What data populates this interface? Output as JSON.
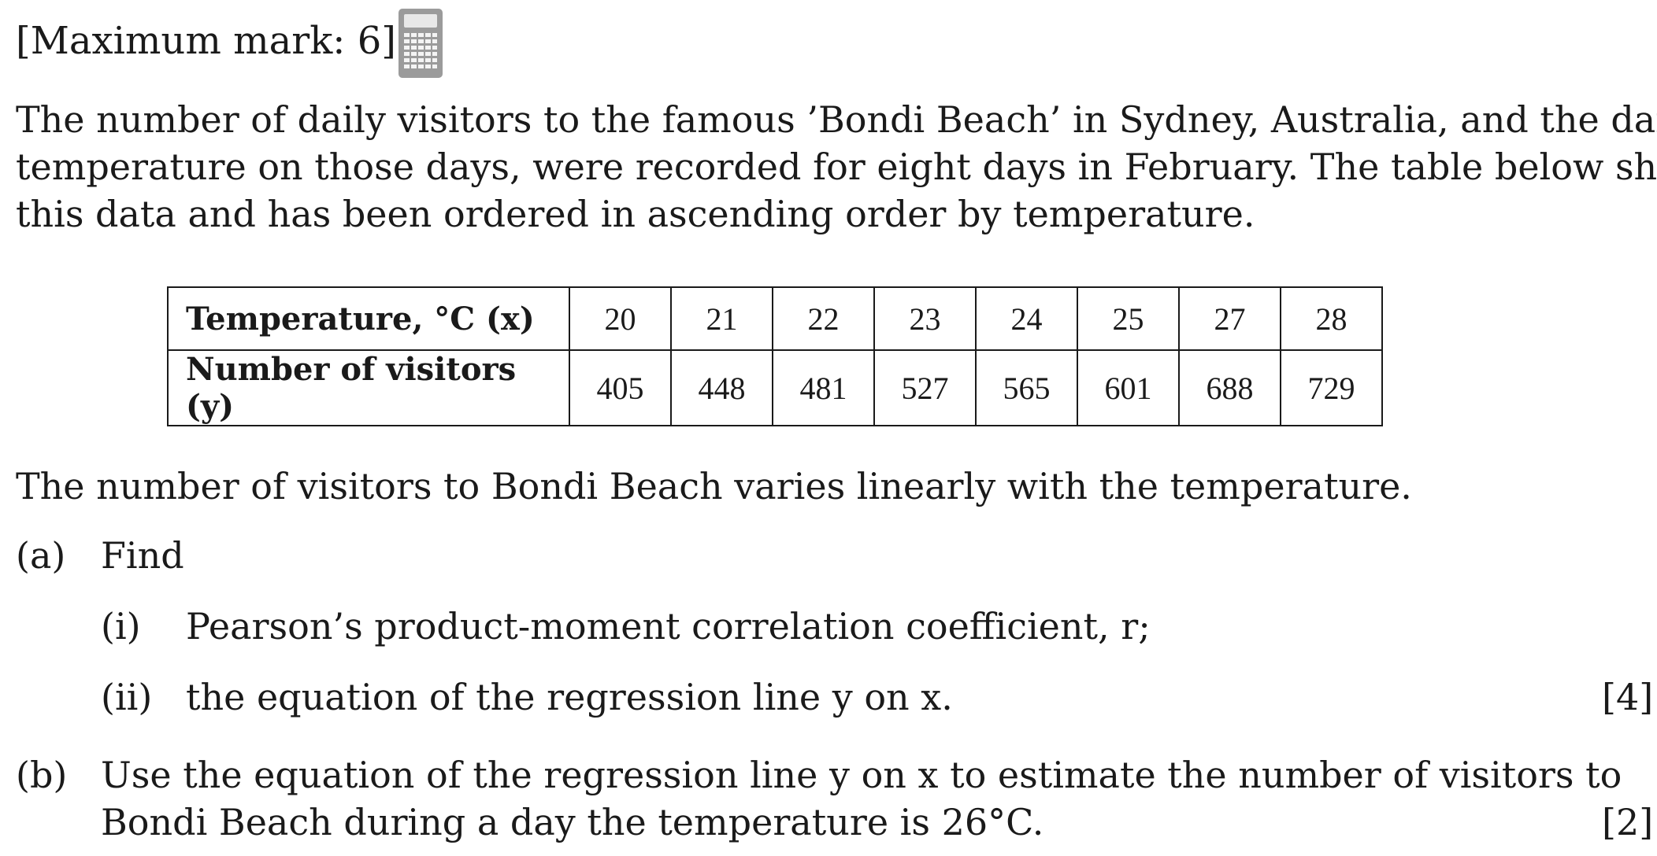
{
  "header": {
    "max_mark": "[Maximum mark: 6]",
    "calculator_icon": "calculator-icon"
  },
  "intro": {
    "line1": "The number of daily visitors to the famous ’Bondi Beach’ in Sydney, Australia, and the daily",
    "line2": "temperature on those days, were recorded for eight days in February. The table below shows",
    "line3": "this data and has been ordered in ascending order by temperature."
  },
  "table": {
    "row1_header": "Temperature, °C (x)",
    "row2_header": "Number of visitors (y)",
    "temperatures": [
      "20",
      "21",
      "22",
      "23",
      "24",
      "25",
      "27",
      "28"
    ],
    "visitors": [
      "405",
      "448",
      "481",
      "527",
      "565",
      "601",
      "688",
      "729"
    ]
  },
  "statement": "The number of visitors to Bondi Beach varies linearly with the temperature.",
  "part_a": {
    "label": "(a)",
    "text": "Find",
    "i_label": "(i)",
    "i_text": "Pearson’s product-moment correlation coefficient, r;",
    "ii_label": "(ii)",
    "ii_text": "the equation of the regression line y on x.",
    "marks": "[4]"
  },
  "part_b": {
    "label": "(b)",
    "line1": "Use the equation of the regression line y on x to estimate the number of visitors to",
    "line2": "Bondi Beach during a day the temperature is 26°C.",
    "marks": "[2]"
  }
}
